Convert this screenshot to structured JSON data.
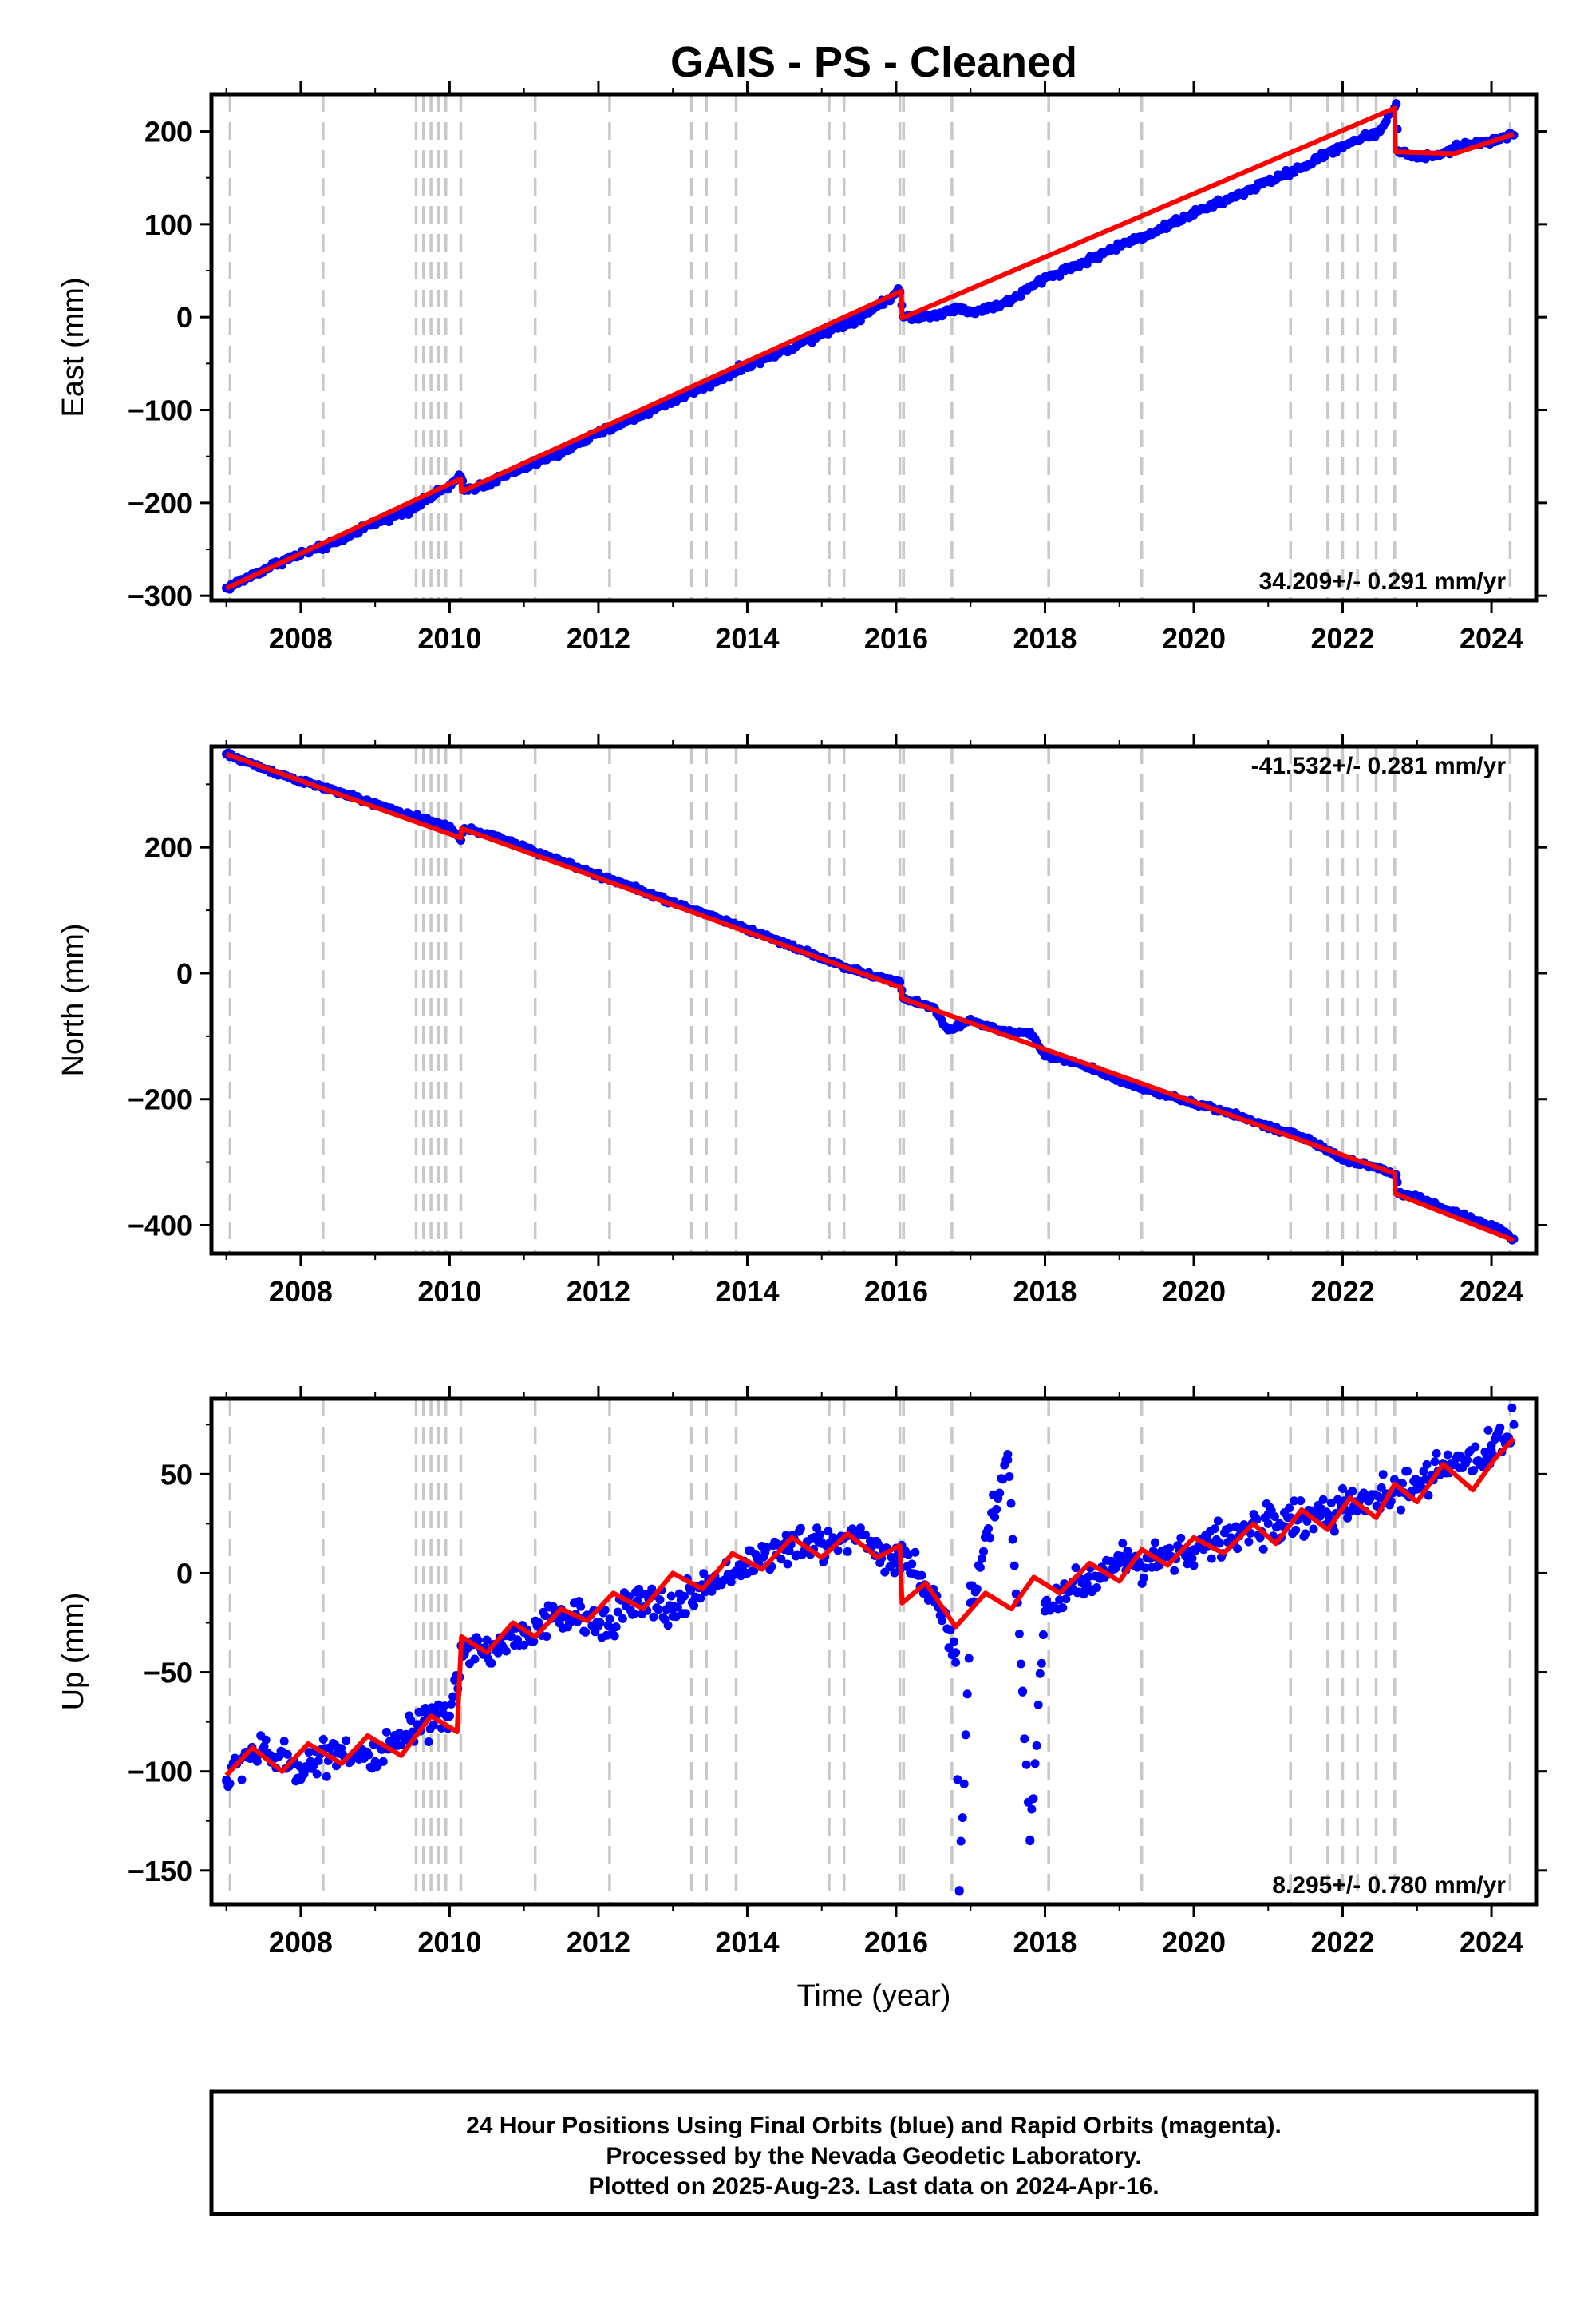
{
  "title": "GAIS  - PS - Cleaned",
  "x_axis": {
    "label": "Time (year)",
    "ticks": [
      "2008",
      "2010",
      "2012",
      "2014",
      "2016",
      "2018",
      "2020",
      "2022",
      "2024"
    ]
  },
  "colors": {
    "data": "#0000ff",
    "model": "#ff0000",
    "event_line": "#c8c8c8",
    "frame": "#000000"
  },
  "chart_data": [
    {
      "type": "scatter",
      "panel": "east",
      "ylabel": "East (mm)",
      "rate": "34.209+/- 0.291 mm/yr",
      "xlim": [
        2006.8,
        2024.6
      ],
      "ylim": [
        -305,
        240
      ],
      "yticks": [
        -300,
        -200,
        -100,
        0,
        100,
        200
      ],
      "yticklabels": [
        "−300",
        "−200",
        "−100",
        "0",
        "100",
        "200"
      ],
      "events": [
        2007.05,
        2008.3,
        2009.55,
        2009.65,
        2009.75,
        2009.85,
        2009.95,
        2010.15,
        2011.15,
        2012.15,
        2013.25,
        2013.45,
        2013.85,
        2015.1,
        2015.3,
        2016.05,
        2016.1,
        2016.75,
        2018.05,
        2019.3,
        2021.3,
        2021.8,
        2022.0,
        2022.2,
        2022.45,
        2022.7,
        2024.25
      ],
      "series": [
        {
          "name": "Final Orbits",
          "style": "points",
          "x": [
            2007.0,
            2007.3,
            2007.6,
            2007.9,
            2008.2,
            2008.5,
            2008.8,
            2009.1,
            2009.4,
            2009.7,
            2010.0,
            2010.15,
            2010.2,
            2010.5,
            2011.0,
            2011.5,
            2012.0,
            2012.5,
            2013.0,
            2013.5,
            2014.0,
            2014.5,
            2015.0,
            2015.5,
            2016.05,
            2016.1,
            2016.5,
            2016.8,
            2017.0,
            2017.5,
            2018.0,
            2018.5,
            2019.0,
            2019.5,
            2020.0,
            2020.5,
            2021.0,
            2021.5,
            2022.0,
            2022.5,
            2022.72,
            2022.75,
            2023.0,
            2023.3,
            2023.6,
            2024.0,
            2024.3
          ],
          "y": [
            -292,
            -280,
            -268,
            -258,
            -250,
            -242,
            -228,
            -218,
            -210,
            -196,
            -182,
            -172,
            -186,
            -180,
            -162,
            -146,
            -125,
            -108,
            -90,
            -72,
            -52,
            -36,
            -18,
            -1,
            28,
            0,
            2,
            10,
            5,
            16,
            42,
            58,
            77,
            93,
            112,
            128,
            146,
            163,
            185,
            200,
            230,
            178,
            172,
            174,
            185,
            190,
            196
          ]
        },
        {
          "name": "Model",
          "style": "line",
          "x": [
            2007.0,
            2010.15,
            2010.16,
            2016.07,
            2016.08,
            2022.7,
            2022.71,
            2023.5,
            2024.3
          ],
          "y": [
            -292,
            -174,
            -188,
            28,
            -1,
            225,
            178,
            176,
            197
          ]
        }
      ]
    },
    {
      "type": "scatter",
      "panel": "north",
      "ylabel": "North (mm)",
      "rate": "-41.532+/- 0.281 mm/yr",
      "xlim": [
        2006.8,
        2024.6
      ],
      "ylim": [
        -445,
        360
      ],
      "yticks": [
        -400,
        -200,
        0,
        200
      ],
      "yticklabels": [
        "−400",
        "−200",
        "0",
        "200"
      ],
      "events": [
        2007.05,
        2008.3,
        2009.55,
        2009.65,
        2009.75,
        2009.85,
        2009.95,
        2010.15,
        2011.15,
        2012.15,
        2013.25,
        2013.45,
        2013.85,
        2015.1,
        2015.3,
        2016.05,
        2016.1,
        2016.75,
        2018.05,
        2019.3,
        2021.3,
        2021.8,
        2022.0,
        2022.2,
        2022.45,
        2022.7,
        2024.25
      ],
      "series": [
        {
          "name": "Final Orbits",
          "style": "points",
          "x": [
            2007.0,
            2007.5,
            2008.0,
            2008.5,
            2009.0,
            2009.5,
            2010.0,
            2010.15,
            2010.2,
            2010.5,
            2011.0,
            2011.5,
            2012.0,
            2012.5,
            2013.0,
            2013.5,
            2014.0,
            2014.5,
            2015.0,
            2015.5,
            2016.05,
            2016.1,
            2016.5,
            2016.7,
            2017.0,
            2017.5,
            2017.8,
            2018.0,
            2018.5,
            2019.0,
            2019.5,
            2020.0,
            2020.5,
            2021.0,
            2021.5,
            2022.0,
            2022.5,
            2022.72,
            2022.75,
            2023.0,
            2023.5,
            2024.0,
            2024.3
          ],
          "y": [
            348,
            325,
            305,
            288,
            268,
            250,
            232,
            212,
            230,
            222,
            200,
            178,
            155,
            135,
            112,
            92,
            70,
            48,
            24,
            2,
            -15,
            -40,
            -55,
            -90,
            -75,
            -95,
            -95,
            -130,
            -145,
            -170,
            -190,
            -207,
            -222,
            -244,
            -262,
            -295,
            -310,
            -320,
            -350,
            -355,
            -380,
            -400,
            -422
          ]
        },
        {
          "name": "Model",
          "style": "line",
          "x": [
            2007.0,
            2010.15,
            2010.16,
            2016.07,
            2016.08,
            2022.7,
            2022.71,
            2024.3
          ],
          "y": [
            348,
            215,
            230,
            -23,
            -40,
            -318,
            -350,
            -424
          ]
        }
      ]
    },
    {
      "type": "scatter",
      "panel": "up",
      "ylabel": "Up (mm)",
      "rate": "8.295+/- 0.780 mm/yr",
      "xlim": [
        2006.8,
        2024.6
      ],
      "ylim": [
        -167,
        88
      ],
      "yticks": [
        -150,
        -100,
        -50,
        0,
        50
      ],
      "yticklabels": [
        "−150",
        "−100",
        "−50",
        "0",
        "50"
      ],
      "events": [
        2007.05,
        2008.3,
        2009.55,
        2009.65,
        2009.75,
        2009.85,
        2009.95,
        2010.15,
        2011.15,
        2012.15,
        2013.25,
        2013.45,
        2013.85,
        2015.1,
        2015.3,
        2016.05,
        2016.1,
        2016.75,
        2018.05,
        2019.3,
        2021.3,
        2021.8,
        2022.0,
        2022.2,
        2022.45,
        2022.7,
        2024.25
      ],
      "series": [
        {
          "name": "Final Orbits",
          "style": "points",
          "x": [
            2007.0,
            2007.3,
            2007.6,
            2008.0,
            2008.5,
            2009.0,
            2009.5,
            2010.0,
            2010.2,
            2010.5,
            2011.0,
            2011.5,
            2012.0,
            2012.5,
            2013.0,
            2013.5,
            2014.0,
            2014.5,
            2015.0,
            2015.5,
            2016.0,
            2016.1,
            2016.5,
            2016.8,
            2016.85,
            2017.0,
            2017.5,
            2017.7,
            2017.8,
            2018.0,
            2018.5,
            2019.0,
            2019.5,
            2020.0,
            2020.5,
            2021.0,
            2021.5,
            2022.0,
            2022.5,
            2023.0,
            2023.5,
            2024.0,
            2024.3
          ],
          "y": [
            -105,
            -90,
            -92,
            -98,
            -88,
            -95,
            -80,
            -72,
            -35,
            -40,
            -30,
            -22,
            -25,
            -15,
            -18,
            -5,
            5,
            12,
            15,
            20,
            5,
            10,
            -10,
            -45,
            -160,
            -15,
            60,
            -60,
            -135,
            -15,
            -5,
            5,
            8,
            12,
            18,
            25,
            28,
            32,
            38,
            45,
            55,
            62,
            75
          ]
        },
        {
          "name": "Model",
          "style": "line",
          "x": [
            2007.0,
            2007.35,
            2007.75,
            2008.1,
            2008.55,
            2008.9,
            2009.35,
            2009.75,
            2010.1,
            2010.16,
            2010.5,
            2010.85,
            2011.15,
            2011.5,
            2011.85,
            2012.2,
            2012.6,
            2013.0,
            2013.4,
            2013.8,
            2014.2,
            2014.6,
            2015.0,
            2015.35,
            2015.75,
            2016.05,
            2016.08,
            2016.4,
            2016.8,
            2017.2,
            2017.55,
            2017.85,
            2018.2,
            2018.6,
            2019.0,
            2019.3,
            2019.65,
            2020.0,
            2020.4,
            2020.8,
            2021.1,
            2021.45,
            2021.8,
            2022.1,
            2022.45,
            2022.7,
            2023.0,
            2023.35,
            2023.75,
            2024.05,
            2024.3
          ],
          "y": [
            -102,
            -88,
            -100,
            -86,
            -96,
            -82,
            -92,
            -72,
            -80,
            -32,
            -40,
            -25,
            -32,
            -18,
            -24,
            -10,
            -18,
            0,
            -8,
            10,
            2,
            18,
            8,
            20,
            8,
            14,
            -15,
            -5,
            -27,
            -10,
            -18,
            -2,
            -10,
            5,
            -4,
            12,
            4,
            18,
            10,
            25,
            15,
            32,
            22,
            38,
            28,
            45,
            36,
            55,
            42,
            58,
            68
          ]
        }
      ]
    }
  ],
  "footer": {
    "line1": "24 Hour Positions Using Final Orbits (blue) and Rapid Orbits (magenta).",
    "line2": "Processed by the Nevada Geodetic Laboratory.",
    "line3": "Plotted on 2025-Aug-23. Last data on 2024-Apr-16."
  }
}
